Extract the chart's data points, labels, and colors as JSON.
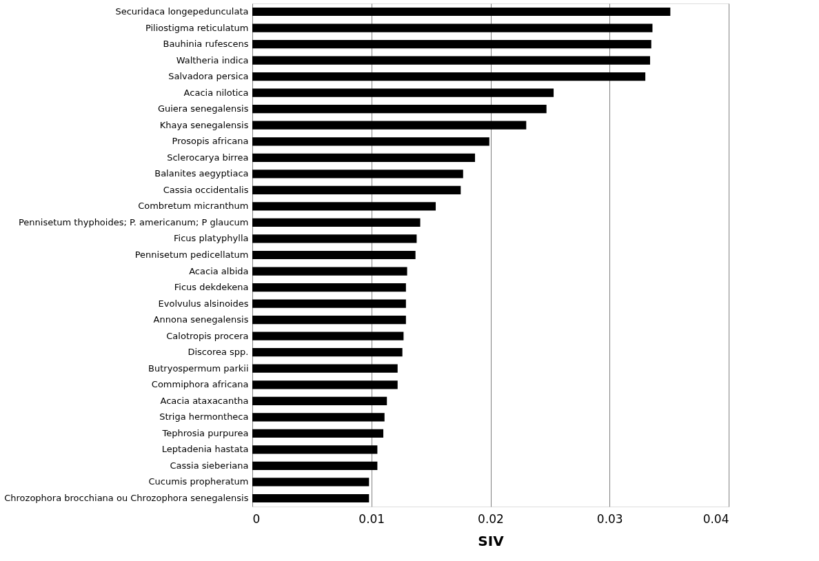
{
  "chart_data": {
    "type": "bar",
    "orientation": "horizontal",
    "xlabel": "SIV",
    "categories": [
      "Securidaca longepedunculata",
      "Piliostigma reticulatum",
      "Bauhinia rufescens",
      "Waltheria indica",
      "Salvadora persica",
      "Acacia nilotica",
      "Guiera senegalensis",
      "Khaya senegalensis",
      "Prosopis africana",
      "Sclerocarya birrea",
      "Balanites aegyptiaca",
      "Cassia occidentalis",
      "Combretum micranthum",
      "Pennisetum thyphoides; P. americanum; P glaucum",
      "Ficus platyphylla",
      "Pennisetum pedicellatum",
      "Acacia albida",
      "Ficus dekdekena",
      "Evolvulus alsinoides",
      "Annona senegalensis",
      "Calotropis procera",
      "Discorea spp.",
      "Butryospermum parkii",
      "Commiphora africana",
      "Acacia ataxacantha",
      "Striga hermontheca",
      "Tephrosia purpurea",
      "Leptadenia hastata",
      "Cassia sieberiana",
      "Cucumis propheratum",
      "Chrozophora brocchiana ou Chrozophora senegalensis"
    ],
    "values": [
      0.0351,
      0.0336,
      0.0335,
      0.0334,
      0.033,
      0.0253,
      0.0247,
      0.023,
      0.0199,
      0.0187,
      0.0177,
      0.0175,
      0.0154,
      0.0141,
      0.0138,
      0.0137,
      0.013,
      0.0129,
      0.0129,
      0.0129,
      0.0127,
      0.0126,
      0.0122,
      0.0122,
      0.0113,
      0.0111,
      0.011,
      0.0105,
      0.0105,
      0.0098,
      0.0098
    ],
    "color": "#000000",
    "xlim": [
      0,
      0.04
    ],
    "xticks": [
      0,
      0.01,
      0.02,
      0.03,
      0.04
    ],
    "grid": "x"
  }
}
